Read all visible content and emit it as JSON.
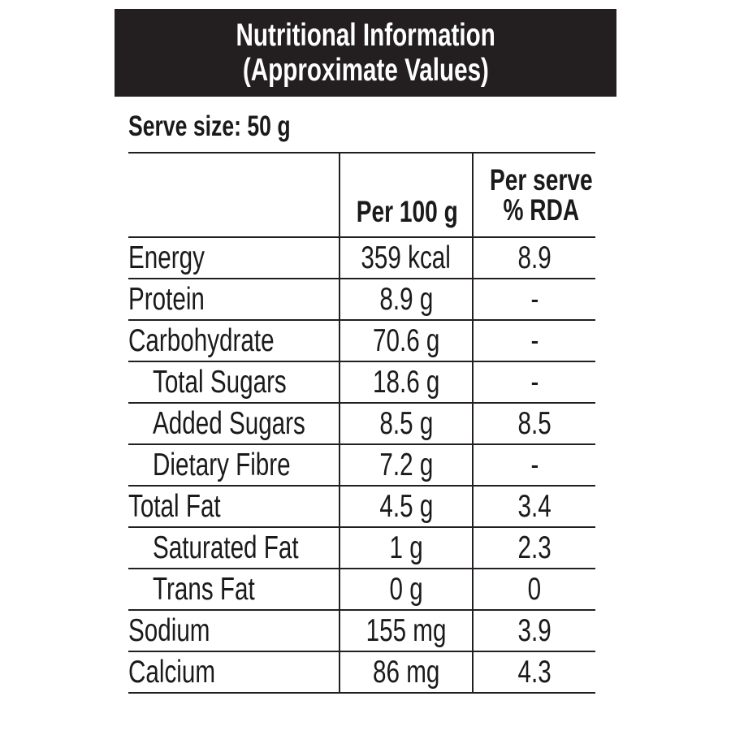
{
  "header": {
    "title_line1": "Nutritional Information",
    "title_line2": "(Approximate Values)"
  },
  "serve_size": "Serve size: 50 g",
  "table": {
    "columns": [
      "",
      "Per 100 g",
      "Per serve\n% RDA"
    ],
    "col2_header": "Per 100 g",
    "col3_header_line1": "Per serve",
    "col3_header_line2": "% RDA",
    "rows": [
      {
        "nutrient": "Energy",
        "per_100g": "359 kcal",
        "rda": "8.9"
      },
      {
        "nutrient": "Protein",
        "per_100g": "8.9 g",
        "rda": "-"
      },
      {
        "nutrient": "Carbohydrate",
        "per_100g": "70.6 g",
        "rda": "-"
      },
      {
        "nutrient": "Total Sugars",
        "per_100g": "18.6 g",
        "rda": "-"
      },
      {
        "nutrient": "Added Sugars",
        "per_100g": "8.5 g",
        "rda": "8.5"
      },
      {
        "nutrient": "Dietary Fibre",
        "per_100g": "7.2 g",
        "rda": "-"
      },
      {
        "nutrient": "Total Fat",
        "per_100g": "4.5 g",
        "rda": "3.4"
      },
      {
        "nutrient": "Saturated Fat",
        "per_100g": "1 g",
        "rda": "2.3"
      },
      {
        "nutrient": "Trans Fat",
        "per_100g": "0 g",
        "rda": "0"
      },
      {
        "nutrient": "Sodium",
        "per_100g": "155 mg",
        "rda": "3.9"
      },
      {
        "nutrient": "Calcium",
        "per_100g": "86 mg",
        "rda": "4.3"
      }
    ]
  },
  "colors": {
    "header_background": "#231f20",
    "header_text": "#ffffff",
    "body_text": "#1a1a1a",
    "rule": "#231f20"
  }
}
